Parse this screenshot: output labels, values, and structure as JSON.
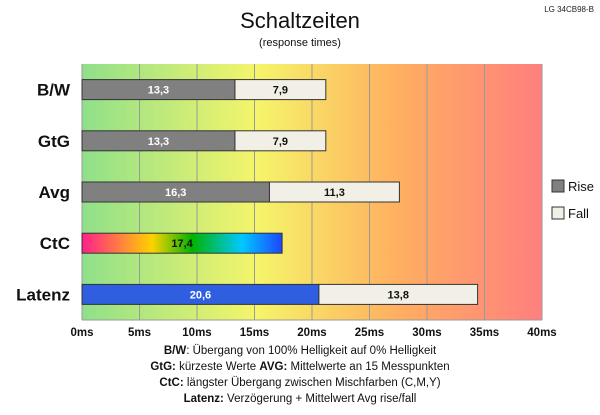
{
  "chart_data": {
    "type": "bar",
    "orientation": "horizontal",
    "stacked": true,
    "title": "Schaltzeiten",
    "subtitle": "(response times)",
    "corner_label": "LG 34CB98-B",
    "categories": [
      "B/W",
      "GtG",
      "Avg",
      "CtC",
      "Latenz"
    ],
    "series": [
      {
        "name": "Rise",
        "values": [
          13.3,
          13.3,
          16.3,
          null,
          null
        ],
        "color": "#808080"
      },
      {
        "name": "Fall",
        "values": [
          7.9,
          7.9,
          11.3,
          null,
          13.8
        ],
        "color": "#f2f0e6"
      }
    ],
    "ctc_value": 17.4,
    "latenz_value": 20.6,
    "data_labels": {
      "B/W": [
        "13,3",
        "7,9"
      ],
      "GtG": [
        "13,3",
        "7,9"
      ],
      "Avg": [
        "16,3",
        "11,3"
      ],
      "CtC": [
        "17,4"
      ],
      "Latenz": [
        "20,6",
        "13,8"
      ]
    },
    "x_ticks": [
      "0ms",
      "5ms",
      "10ms",
      "15ms",
      "20ms",
      "25ms",
      "30ms",
      "35ms",
      "40ms"
    ],
    "xlim": [
      0,
      40
    ],
    "grid": true,
    "legend_position": "right",
    "background_gradient": [
      "#8fe08a",
      "#f5f56a",
      "#ffb060",
      "#ff7f7f"
    ],
    "colors": {
      "rise": "#808080",
      "fall": "#f2f0e6",
      "latenz": "#2f5fe0",
      "ctc_gradient": [
        "#ff1e8c",
        "#ffd200",
        "#00b400",
        "#00c8ff",
        "#1e46ff"
      ]
    }
  },
  "legend": [
    {
      "label": "Rise"
    },
    {
      "label": "Fall"
    }
  ],
  "notes": [
    [
      {
        "b": "B/W"
      },
      {
        "t": ":  Übergang von 100% Helligkeit auf 0% Helligkeit"
      }
    ],
    [
      {
        "b": "GtG:"
      },
      {
        "t": " kürzeste  Werte          "
      },
      {
        "b": "AVG:"
      },
      {
        "t": "  Mittelwerte  an 15 Messpunkten"
      }
    ],
    [
      {
        "b": "CtC:"
      },
      {
        "t": " längster Übergang  zwischen Mischfarben  (C,M,Y)"
      }
    ],
    [
      {
        "b": "Latenz:"
      },
      {
        "t": " Verzögerung  + Mittelwert Avg rise/fall"
      }
    ]
  ]
}
